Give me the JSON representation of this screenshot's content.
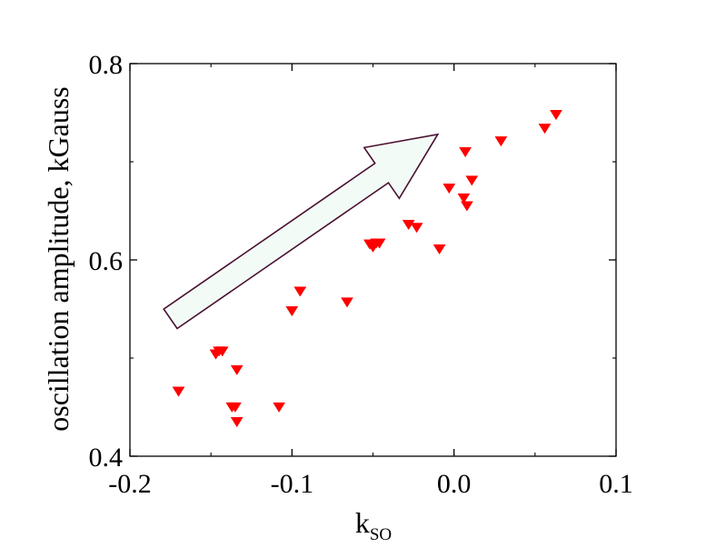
{
  "chart_data": {
    "type": "scatter",
    "title": "",
    "xlabel": "k",
    "xlabel_subscript": "SO",
    "ylabel": "oscillation amplitude, kGauss",
    "xlim": [
      -0.2,
      0.1
    ],
    "ylim": [
      0.4,
      0.8
    ],
    "x_ticks": [
      -0.2,
      -0.1,
      0.0,
      0.1
    ],
    "x_tick_labels": [
      "-0.2",
      "-0.1",
      "0.0",
      "0.1"
    ],
    "y_ticks": [
      0.4,
      0.6,
      0.8
    ],
    "y_tick_labels": [
      "0.4",
      "0.6",
      "0.8"
    ],
    "y_minor_ticks": [
      0.5,
      0.7
    ],
    "grid": false,
    "marker": "triangle-down",
    "marker_color": "#ff0000",
    "arrow": {
      "from": [
        -0.175,
        0.54
      ],
      "to": [
        -0.01,
        0.728
      ],
      "fill": "#f2fbf6",
      "stroke": "#4a1030"
    },
    "series": [
      {
        "points": [
          [
            -0.17,
            0.466
          ],
          [
            -0.147,
            0.504
          ],
          [
            -0.145,
            0.507
          ],
          [
            -0.143,
            0.507
          ],
          [
            -0.134,
            0.488
          ],
          [
            -0.137,
            0.45
          ],
          [
            -0.135,
            0.45
          ],
          [
            -0.134,
            0.435
          ],
          [
            -0.108,
            0.45
          ],
          [
            -0.1,
            0.548
          ],
          [
            -0.095,
            0.568
          ],
          [
            -0.066,
            0.557
          ],
          [
            -0.052,
            0.616
          ],
          [
            -0.05,
            0.613
          ],
          [
            -0.048,
            0.617
          ],
          [
            -0.046,
            0.617
          ],
          [
            -0.028,
            0.636
          ],
          [
            -0.023,
            0.633
          ],
          [
            -0.009,
            0.611
          ],
          [
            -0.003,
            0.673
          ],
          [
            0.006,
            0.663
          ],
          [
            0.007,
            0.71
          ],
          [
            0.008,
            0.655
          ],
          [
            0.011,
            0.681
          ],
          [
            0.029,
            0.721
          ],
          [
            0.056,
            0.734
          ],
          [
            0.063,
            0.748
          ]
        ]
      }
    ]
  }
}
